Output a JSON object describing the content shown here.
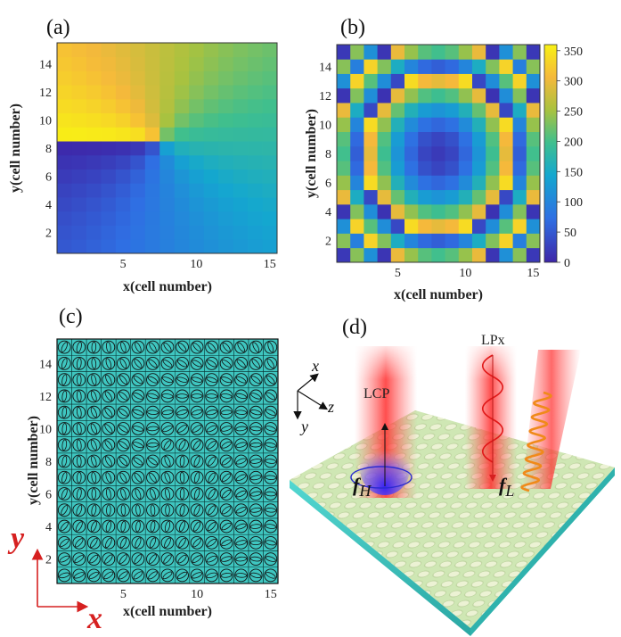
{
  "panels": {
    "a": {
      "label": "(a)"
    },
    "b": {
      "label": "(b)"
    },
    "c": {
      "label": "(c)"
    },
    "d": {
      "label": "(d)"
    }
  },
  "axis_labels": {
    "x": "x(cell number)",
    "y": "y(cell number)"
  },
  "chart_data": [
    {
      "panel": "a",
      "type": "heatmap",
      "title": "",
      "xlabel": "x(cell number)",
      "ylabel": "y(cell number)",
      "grid_size": [
        15,
        15
      ],
      "x_ticks": [
        5,
        10,
        15
      ],
      "y_ticks": [
        2,
        4,
        6,
        8,
        10,
        12,
        14
      ],
      "value_range": [
        0,
        360
      ],
      "description": "phase = azimuthal angle around center (8,8)"
    },
    {
      "panel": "b",
      "type": "heatmap",
      "title": "",
      "xlabel": "x(cell number)",
      "ylabel": "y(cell number)",
      "grid_size": [
        15,
        15
      ],
      "x_ticks": [
        5,
        10,
        15
      ],
      "y_ticks": [
        2,
        4,
        6,
        8,
        10,
        12,
        14
      ],
      "colorbar_ticks": [
        0,
        50,
        100,
        150,
        200,
        250,
        300,
        350
      ],
      "value_range": [
        0,
        360
      ],
      "description": "phase = radial lens profile around center (8,8)"
    },
    {
      "panel": "c",
      "type": "heatmap",
      "title": "",
      "xlabel": "x(cell number)",
      "ylabel": "y(cell number)",
      "grid_size": [
        15,
        15
      ],
      "x_ticks": [
        5,
        10,
        15
      ],
      "y_ticks": [
        2,
        4,
        6,
        8,
        10,
        12,
        14
      ],
      "description": "unit cell layout with rotated elliptical meta-atoms"
    }
  ],
  "coord_arrows": {
    "x": "x",
    "y": "y"
  },
  "schematic": {
    "axes": {
      "x": "x",
      "y": "y",
      "z": "z"
    },
    "lcp_label": "LCP",
    "lpx_label": "LPx",
    "fh_base": "f",
    "fh_sub": "H",
    "fl_base": "f",
    "fl_sub": "L"
  },
  "colors": {
    "teal": "#3fc6c0",
    "metasurface": "#cfe7b4",
    "beam_red": "#ff3b3b",
    "focus_blue": "#4a46d8",
    "arrow_red": "#d62020"
  }
}
